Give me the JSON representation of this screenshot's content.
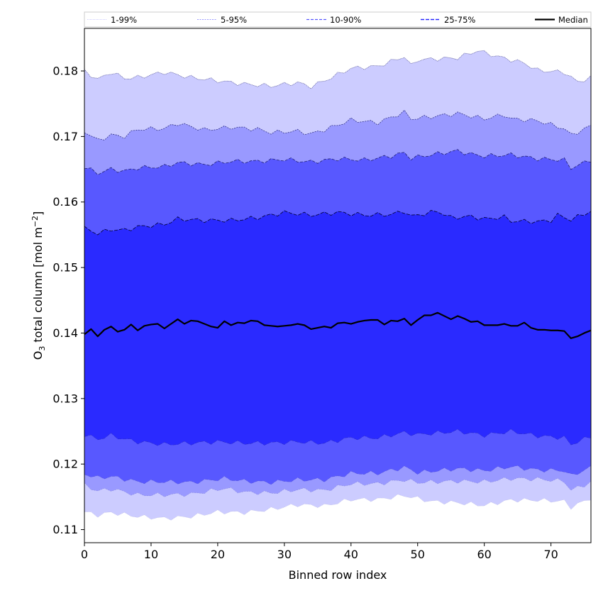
{
  "chart_data": {
    "type": "area",
    "xlabel": "Binned row index",
    "ylabel_main": "O",
    "ylabel_sub": "3",
    "ylabel_rest": " total column [mol m",
    "ylabel_sup": "−2",
    "ylabel_end": "]",
    "xlim": [
      0,
      76
    ],
    "ylim": [
      0.108,
      0.1865
    ],
    "xticks": [
      0,
      10,
      20,
      30,
      40,
      50,
      60,
      70
    ],
    "yticks": [
      0.11,
      0.12,
      0.13,
      0.14,
      0.15,
      0.16,
      0.17,
      0.18
    ],
    "ytick_labels": [
      "0.11",
      "0.12",
      "0.13",
      "0.14",
      "0.15",
      "0.16",
      "0.17",
      "0.18"
    ],
    "x": [
      0,
      1,
      2,
      3,
      4,
      5,
      6,
      7,
      8,
      9,
      10,
      11,
      12,
      13,
      14,
      15,
      16,
      17,
      18,
      19,
      20,
      21,
      22,
      23,
      24,
      25,
      26,
      27,
      28,
      29,
      30,
      31,
      32,
      33,
      34,
      35,
      36,
      37,
      38,
      39,
      40,
      41,
      42,
      43,
      44,
      45,
      46,
      47,
      48,
      49,
      50,
      51,
      52,
      53,
      54,
      55,
      56,
      57,
      58,
      59,
      60,
      61,
      62,
      63,
      64,
      65,
      66,
      67,
      68,
      69,
      70,
      71,
      72,
      73,
      74,
      75,
      76
    ],
    "legend": {
      "placement": "top",
      "entries": [
        "1-99%",
        "5-95%",
        "10-90%",
        "25-75%",
        "Median"
      ]
    },
    "colors": {
      "band_1_99": "#ccccff",
      "band_5_95": "#9999ff",
      "band_10_90": "#5858ff",
      "band_25_75": "#2a2aff",
      "median": "#000000"
    },
    "series": [
      {
        "name": "1-99%",
        "lower_anchors": [
          [
            0,
            0.1127
          ],
          [
            2,
            0.1122
          ],
          [
            4,
            0.1126
          ],
          [
            8,
            0.112
          ],
          [
            12,
            0.1117
          ],
          [
            16,
            0.112
          ],
          [
            20,
            0.1127
          ],
          [
            24,
            0.1126
          ],
          [
            28,
            0.1131
          ],
          [
            32,
            0.1138
          ],
          [
            36,
            0.1136
          ],
          [
            40,
            0.1146
          ],
          [
            44,
            0.1146
          ],
          [
            48,
            0.1152
          ],
          [
            52,
            0.1143
          ],
          [
            56,
            0.1141
          ],
          [
            60,
            0.1137
          ],
          [
            64,
            0.1145
          ],
          [
            68,
            0.1145
          ],
          [
            72,
            0.1143
          ],
          [
            73,
            0.1134
          ],
          [
            76,
            0.1148
          ]
        ],
        "upper_anchors": [
          [
            0,
            0.18
          ],
          [
            2,
            0.1787
          ],
          [
            4,
            0.1798
          ],
          [
            6,
            0.1789
          ],
          [
            8,
            0.179
          ],
          [
            12,
            0.1798
          ],
          [
            16,
            0.179
          ],
          [
            20,
            0.1785
          ],
          [
            24,
            0.178
          ],
          [
            28,
            0.1777
          ],
          [
            32,
            0.1782
          ],
          [
            34,
            0.1776
          ],
          [
            36,
            0.1785
          ],
          [
            40,
            0.1804
          ],
          [
            44,
            0.1807
          ],
          [
            48,
            0.1822
          ],
          [
            49,
            0.1808
          ],
          [
            50,
            0.1817
          ],
          [
            56,
            0.182
          ],
          [
            59,
            0.1831
          ],
          [
            62,
            0.1822
          ],
          [
            66,
            0.1812
          ],
          [
            68,
            0.1801
          ],
          [
            72,
            0.1798
          ],
          [
            74,
            0.1783
          ],
          [
            76,
            0.179
          ]
        ]
      },
      {
        "name": "5-95%",
        "lower_anchors": [
          [
            0,
            0.1168
          ],
          [
            2,
            0.1159
          ],
          [
            4,
            0.1162
          ],
          [
            8,
            0.1153
          ],
          [
            12,
            0.1153
          ],
          [
            16,
            0.1154
          ],
          [
            21,
            0.1163
          ],
          [
            24,
            0.1157
          ],
          [
            28,
            0.1156
          ],
          [
            32,
            0.1161
          ],
          [
            36,
            0.116
          ],
          [
            40,
            0.117
          ],
          [
            44,
            0.117
          ],
          [
            48,
            0.1176
          ],
          [
            50,
            0.1172
          ],
          [
            56,
            0.1174
          ],
          [
            60,
            0.1173
          ],
          [
            64,
            0.1178
          ],
          [
            68,
            0.1177
          ],
          [
            72,
            0.1174
          ],
          [
            73,
            0.116
          ],
          [
            76,
            0.1172
          ]
        ],
        "upper_anchors": [
          [
            0,
            0.1708
          ],
          [
            2,
            0.1694
          ],
          [
            4,
            0.1702
          ],
          [
            6,
            0.17
          ],
          [
            8,
            0.1711
          ],
          [
            12,
            0.1712
          ],
          [
            14,
            0.172
          ],
          [
            18,
            0.171
          ],
          [
            22,
            0.1714
          ],
          [
            26,
            0.1711
          ],
          [
            28,
            0.1706
          ],
          [
            32,
            0.1708
          ],
          [
            34,
            0.1704
          ],
          [
            36,
            0.171
          ],
          [
            40,
            0.1725
          ],
          [
            44,
            0.1721
          ],
          [
            48,
            0.1737
          ],
          [
            49,
            0.1727
          ],
          [
            52,
            0.173
          ],
          [
            56,
            0.1735
          ],
          [
            60,
            0.1727
          ],
          [
            63,
            0.1733
          ],
          [
            64,
            0.1727
          ],
          [
            68,
            0.1724
          ],
          [
            72,
            0.1712
          ],
          [
            73,
            0.1702
          ],
          [
            76,
            0.1716
          ]
        ]
      },
      {
        "name": "10-90%",
        "lower_anchors": [
          [
            0,
            0.1185
          ],
          [
            2,
            0.1179
          ],
          [
            4,
            0.1181
          ],
          [
            8,
            0.1173
          ],
          [
            12,
            0.1173
          ],
          [
            16,
            0.1172
          ],
          [
            21,
            0.1178
          ],
          [
            24,
            0.1174
          ],
          [
            28,
            0.1172
          ],
          [
            32,
            0.1176
          ],
          [
            36,
            0.1176
          ],
          [
            40,
            0.1186
          ],
          [
            44,
            0.1186
          ],
          [
            48,
            0.1195
          ],
          [
            50,
            0.1187
          ],
          [
            56,
            0.1193
          ],
          [
            60,
            0.119
          ],
          [
            64,
            0.1196
          ],
          [
            68,
            0.1191
          ],
          [
            72,
            0.119
          ],
          [
            73,
            0.1182
          ],
          [
            76,
            0.1195
          ]
        ],
        "upper_anchors": [
          [
            0,
            0.1653
          ],
          [
            2,
            0.1644
          ],
          [
            4,
            0.165
          ],
          [
            6,
            0.1647
          ],
          [
            8,
            0.1652
          ],
          [
            12,
            0.1654
          ],
          [
            14,
            0.166
          ],
          [
            18,
            0.1657
          ],
          [
            22,
            0.1662
          ],
          [
            26,
            0.1662
          ],
          [
            30,
            0.1665
          ],
          [
            34,
            0.1661
          ],
          [
            38,
            0.1666
          ],
          [
            42,
            0.1664
          ],
          [
            46,
            0.167
          ],
          [
            48,
            0.1675
          ],
          [
            49,
            0.1667
          ],
          [
            52,
            0.1672
          ],
          [
            56,
            0.1678
          ],
          [
            58,
            0.1673
          ],
          [
            60,
            0.167
          ],
          [
            64,
            0.1672
          ],
          [
            68,
            0.1666
          ],
          [
            72,
            0.1664
          ],
          [
            73,
            0.1652
          ],
          [
            76,
            0.1664
          ]
        ]
      },
      {
        "name": "25-75%",
        "lower_anchors": [
          [
            0,
            0.1245
          ],
          [
            2,
            0.1238
          ],
          [
            4,
            0.1244
          ],
          [
            6,
            0.1238
          ],
          [
            8,
            0.1234
          ],
          [
            12,
            0.123
          ],
          [
            16,
            0.1232
          ],
          [
            20,
            0.1234
          ],
          [
            24,
            0.1232
          ],
          [
            28,
            0.1232
          ],
          [
            32,
            0.1234
          ],
          [
            36,
            0.1232
          ],
          [
            40,
            0.124
          ],
          [
            44,
            0.124
          ],
          [
            48,
            0.1248
          ],
          [
            50,
            0.1245
          ],
          [
            56,
            0.125
          ],
          [
            60,
            0.1244
          ],
          [
            64,
            0.125
          ],
          [
            68,
            0.1243
          ],
          [
            72,
            0.124
          ],
          [
            73,
            0.123
          ],
          [
            76,
            0.1242
          ]
        ],
        "upper_anchors": [
          [
            0,
            0.156
          ],
          [
            2,
            0.1552
          ],
          [
            4,
            0.1558
          ],
          [
            6,
            0.1557
          ],
          [
            8,
            0.1562
          ],
          [
            12,
            0.1566
          ],
          [
            14,
            0.1574
          ],
          [
            18,
            0.1572
          ],
          [
            22,
            0.1572
          ],
          [
            26,
            0.1576
          ],
          [
            30,
            0.1584
          ],
          [
            34,
            0.158
          ],
          [
            38,
            0.1584
          ],
          [
            42,
            0.158
          ],
          [
            46,
            0.1581
          ],
          [
            48,
            0.1586
          ],
          [
            49,
            0.1578
          ],
          [
            53,
            0.1586
          ],
          [
            55,
            0.1576
          ],
          [
            58,
            0.1578
          ],
          [
            60,
            0.1574
          ],
          [
            63,
            0.1577
          ],
          [
            64,
            0.1571
          ],
          [
            68,
            0.157
          ],
          [
            70,
            0.1572
          ],
          [
            71,
            0.158
          ],
          [
            73,
            0.1573
          ],
          [
            76,
            0.1586
          ]
        ]
      },
      {
        "name": "Median",
        "values": [
          0.1398,
          0.1406,
          0.1395,
          0.1405,
          0.141,
          0.1402,
          0.1405,
          0.1413,
          0.1404,
          0.1411,
          0.1413,
          0.1414,
          0.1407,
          0.1414,
          0.1421,
          0.1414,
          0.1419,
          0.1418,
          0.1414,
          0.141,
          0.1408,
          0.1418,
          0.1412,
          0.1416,
          0.1415,
          0.1419,
          0.1418,
          0.1412,
          0.1411,
          0.141,
          0.1411,
          0.1412,
          0.1414,
          0.1412,
          0.1406,
          0.1408,
          0.141,
          0.1408,
          0.1415,
          0.1416,
          0.1414,
          0.1417,
          0.1419,
          0.142,
          0.142,
          0.1413,
          0.1419,
          0.1418,
          0.1422,
          0.1412,
          0.142,
          0.1427,
          0.1427,
          0.1431,
          0.1426,
          0.1421,
          0.1426,
          0.1422,
          0.1417,
          0.1418,
          0.1412,
          0.1412,
          0.1412,
          0.1414,
          0.1411,
          0.1411,
          0.1416,
          0.1408,
          0.1405,
          0.1405,
          0.1404,
          0.1404,
          0.1403,
          0.1392,
          0.1395,
          0.14,
          0.1404
        ]
      }
    ]
  }
}
